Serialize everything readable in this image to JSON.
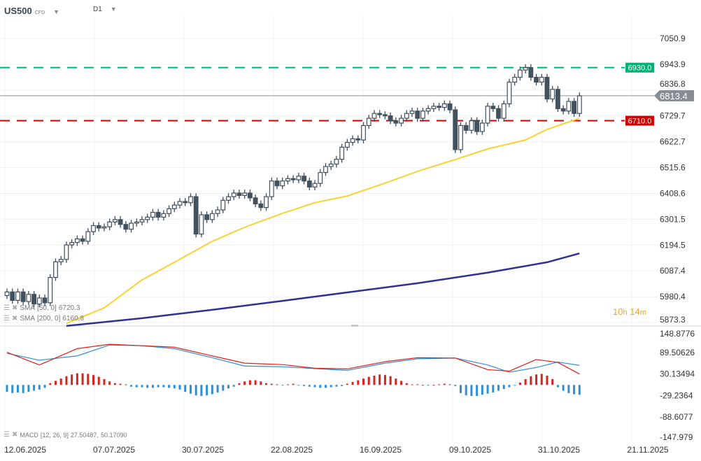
{
  "header": {
    "symbol": "US500",
    "instrument_type": "CFD",
    "timeframe": "D1"
  },
  "indicators": {
    "sma50": {
      "label": "SMA",
      "params": "[50, 0]",
      "value": "6720.3",
      "color": "#f9d235"
    },
    "sma200": {
      "label": "SMA",
      "params": "[200, 0]",
      "value": "6160.8",
      "color": "#2e3192"
    },
    "macd": {
      "label": "MACD",
      "params": "[12, 26, 9]",
      "value1": "27.50487,",
      "value2": "50.17090"
    }
  },
  "timer": {
    "hours": "10",
    "h": "h",
    "minutes": "14",
    "m": "m"
  },
  "levels": {
    "resistance": {
      "value": 6930.0,
      "label": "6930.0",
      "color": "#00b074"
    },
    "support": {
      "value": 6710.0,
      "label": "6710.0",
      "color": "#d40000"
    },
    "current": {
      "value": 6813.4,
      "label": "6813.4",
      "color": "#868e93"
    }
  },
  "price_axis": [
    "7050.9",
    "6943.9",
    "6836.8",
    "6729.7",
    "6622.7",
    "6515.6",
    "6408.6",
    "6301.5",
    "6194.5",
    "6087.4",
    "5980.4",
    "5873.3"
  ],
  "macd_axis": [
    "148.8776",
    "89.50626",
    "30.13494",
    "-29.2364",
    "-88.6077",
    "-147.979"
  ],
  "date_axis": [
    "12.06.2025",
    "07.07.2025",
    "30.07.2025",
    "22.08.2025",
    "16.09.2025",
    "09.10.2025",
    "31.10.2025",
    "21.11.2025"
  ],
  "chart_data": {
    "type": "candlestick",
    "close": [
      6000,
      5965,
      6000,
      5960,
      5990,
      5950,
      5975,
      5955,
      6060,
      6125,
      6135,
      6195,
      6205,
      6220,
      6210,
      6250,
      6275,
      6265,
      6270,
      6290,
      6300,
      6280,
      6260,
      6285,
      6290,
      6300,
      6310,
      6330,
      6310,
      6325,
      6345,
      6360,
      6375,
      6370,
      6395,
      6240,
      6320,
      6300,
      6325,
      6340,
      6380,
      6395,
      6410,
      6400,
      6410,
      6390,
      6365,
      6350,
      6395,
      6460,
      6440,
      6460,
      6470,
      6465,
      6480,
      6460,
      6435,
      6450,
      6495,
      6520,
      6530,
      6550,
      6600,
      6620,
      6635,
      6630,
      6690,
      6720,
      6740,
      6735,
      6730,
      6710,
      6700,
      6720,
      6740,
      6750,
      6720,
      6750,
      6760,
      6770,
      6765,
      6780,
      6755,
      6590,
      6690,
      6670,
      6710,
      6665,
      6700,
      6770,
      6760,
      6720,
      6780,
      6870,
      6890,
      6920,
      6930,
      6890,
      6870,
      6890,
      6800,
      6840,
      6760,
      6750,
      6790,
      6740,
      6813
    ],
    "open": [
      5985,
      6000,
      5965,
      6000,
      5960,
      5990,
      5950,
      5975,
      5955,
      6060,
      6125,
      6135,
      6195,
      6205,
      6220,
      6210,
      6250,
      6275,
      6265,
      6270,
      6290,
      6300,
      6280,
      6260,
      6285,
      6290,
      6300,
      6310,
      6330,
      6310,
      6325,
      6345,
      6360,
      6375,
      6370,
      6395,
      6240,
      6320,
      6300,
      6325,
      6340,
      6380,
      6395,
      6410,
      6400,
      6410,
      6390,
      6365,
      6350,
      6395,
      6460,
      6440,
      6460,
      6470,
      6465,
      6480,
      6460,
      6435,
      6450,
      6495,
      6520,
      6530,
      6550,
      6600,
      6620,
      6635,
      6630,
      6690,
      6720,
      6740,
      6735,
      6730,
      6710,
      6700,
      6720,
      6740,
      6750,
      6720,
      6750,
      6760,
      6770,
      6765,
      6780,
      6755,
      6590,
      6690,
      6670,
      6710,
      6665,
      6700,
      6770,
      6760,
      6720,
      6780,
      6870,
      6890,
      6920,
      6930,
      6890,
      6870,
      6890,
      6800,
      6840,
      6760,
      6750,
      6790,
      6740
    ],
    "sma50": {
      "index": [
        11,
        18,
        25,
        31,
        38,
        44,
        51,
        57,
        63,
        70,
        76,
        83,
        89,
        96,
        100,
        106
      ],
      "values": [
        5870,
        5934,
        6050,
        6123,
        6210,
        6268,
        6326,
        6370,
        6398,
        6451,
        6500,
        6549,
        6593,
        6630,
        6674,
        6720
      ]
    },
    "sma200": {
      "index": [
        11,
        25,
        38,
        51,
        63,
        76,
        89,
        100,
        106
      ],
      "values": [
        5859,
        5891,
        5926,
        5963,
        5998,
        6036,
        6080,
        6123,
        6160
      ]
    },
    "macd_line": {
      "index": [
        0,
        6,
        13,
        19,
        25,
        31,
        38,
        44,
        51,
        57,
        63,
        70,
        76,
        83,
        89,
        93,
        98,
        102,
        106
      ],
      "values": [
        87,
        68,
        80,
        110,
        108,
        100,
        75,
        52,
        50,
        45,
        40,
        60,
        72,
        74,
        55,
        35,
        48,
        63,
        54
      ],
      "color": "#2f8fd6"
    },
    "signal_line": {
      "index": [
        0,
        6,
        13,
        19,
        25,
        31,
        38,
        44,
        51,
        57,
        63,
        70,
        76,
        83,
        89,
        93,
        98,
        102,
        106
      ],
      "values": [
        90,
        55,
        100,
        112,
        108,
        104,
        80,
        60,
        56,
        46,
        44,
        64,
        75,
        74,
        42,
        38,
        70,
        62,
        30
      ],
      "color": "#e0201b"
    },
    "histogram": [
      -12,
      -14,
      -13,
      -14,
      -12,
      -10,
      -8,
      -5,
      3,
      7,
      11,
      15,
      18,
      20,
      20,
      19,
      17,
      14,
      10,
      6,
      3,
      2,
      1,
      -3,
      -4,
      -4,
      -5,
      -5,
      -4,
      -4,
      -5,
      -6,
      -8,
      -12,
      -15,
      -18,
      -19,
      -18,
      -16,
      -13,
      -10,
      -6,
      -3,
      3,
      6,
      8,
      8,
      6,
      3,
      2,
      1,
      -1,
      1,
      2,
      -1,
      -2,
      -3,
      -4,
      -5,
      -5,
      -4,
      -3,
      -2,
      2,
      5,
      8,
      11,
      14,
      16,
      18,
      17,
      15,
      11,
      7,
      3,
      1,
      1,
      0,
      -1,
      0,
      1,
      2,
      1,
      -2,
      -14,
      -18,
      -19,
      -19,
      -17,
      -15,
      -13,
      -10,
      -7,
      -4,
      -1,
      4,
      10,
      15,
      18,
      19,
      16,
      10,
      -4,
      -10,
      -14,
      -16,
      -17
    ],
    "price_range": [
      5873.3,
      7050.9
    ],
    "macd_range": [
      -147.979,
      148.8776
    ],
    "grid": true
  }
}
